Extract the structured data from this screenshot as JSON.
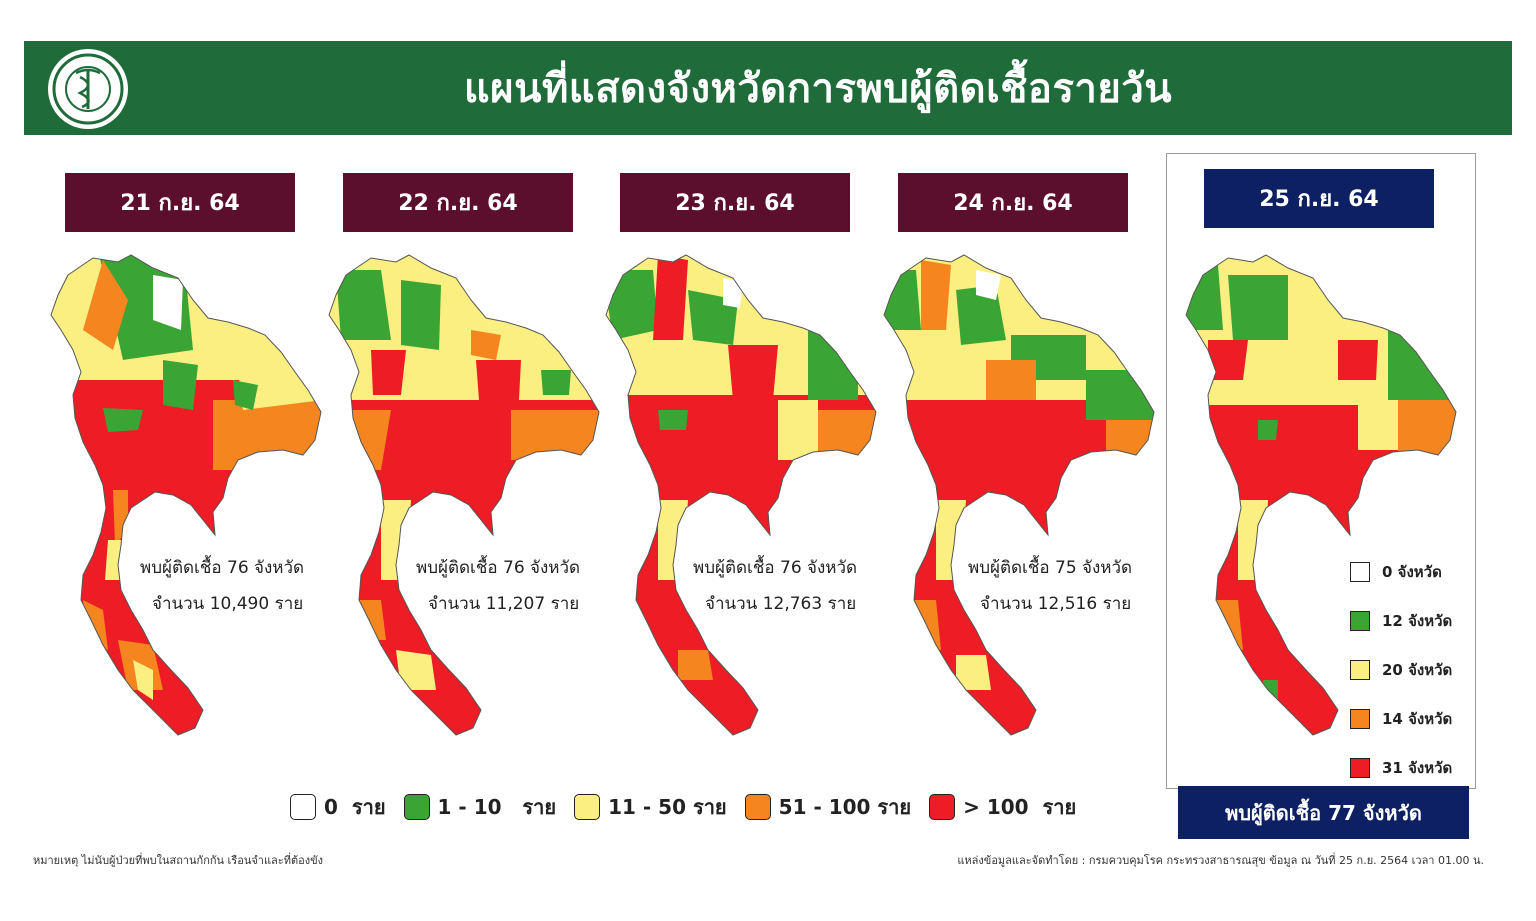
{
  "header": {
    "title": "แผนที่แสดงจังหวัดการพบผู้ติดเชื้อรายวัน",
    "background": "#1f6b3a"
  },
  "panels": [
    {
      "date": "21 ก.ย. 64",
      "summary_line1": "พบผู้ติดเชื้อ 76 จังหวัด",
      "summary_line2": "จำนวน 10,490 ราย"
    },
    {
      "date": "22 ก.ย. 64",
      "summary_line1": "พบผู้ติดเชื้อ 76 จังหวัด",
      "summary_line2": "จำนวน 11,207 ราย"
    },
    {
      "date": "23 ก.ย. 64",
      "summary_line1": "พบผู้ติดเชื้อ 76 จังหวัด",
      "summary_line2": "จำนวน 12,763 ราย"
    },
    {
      "date": "24 ก.ย. 64",
      "summary_line1": "พบผู้ติดเชื้อ 75 จังหวัด",
      "summary_line2": "จำนวน 12,516 ราย"
    },
    {
      "date": "25 ก.ย. 64"
    }
  ],
  "current": {
    "total_label": "พบผู้ติดเชื้อ 77 จังหวัด",
    "legend": [
      {
        "label": "0 จังหวัด",
        "color": "#ffffff"
      },
      {
        "label": "12 จังหวัด",
        "color": "#3aa535"
      },
      {
        "label": "20 จังหวัด",
        "color": "#fbef82"
      },
      {
        "label": "14 จังหวัด",
        "color": "#f5851f"
      },
      {
        "label": "31 จังหวัด",
        "color": "#ee1c24"
      }
    ]
  },
  "legend": [
    {
      "label": "0  ราย",
      "color": "#ffffff"
    },
    {
      "label": "1 - 10   ราย",
      "color": "#3aa535"
    },
    {
      "label": "11 - 50 ราย",
      "color": "#fbef82"
    },
    {
      "label": "51 - 100 ราย",
      "color": "#f5851f"
    },
    {
      "label": "> 100  ราย",
      "color": "#ee1c24"
    }
  ],
  "footnote": "หมายเหตุ ไม่นับผู้ป่วยที่พบในสถานกักกัน เรือนจำและที่ต้องขัง",
  "source": "แหล่งข้อมูลและจัดทำโดย : กรมควบคุมโรค กระทรวงสาธารณสุข ข้อมูล ณ วันที่ 25 ก.ย. 2564 เวลา 01.00 น."
}
